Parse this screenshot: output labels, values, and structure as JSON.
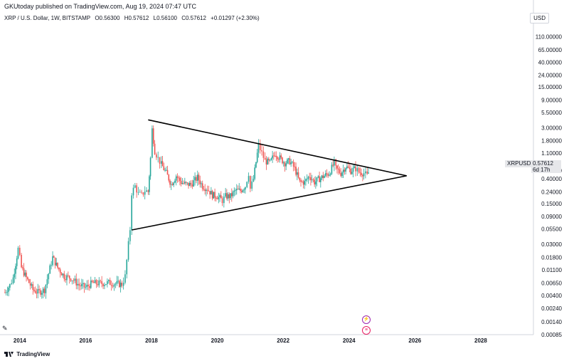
{
  "header": {
    "published": "GKUtoday published on TradingView.com, Aug 19, 2024 07:47 UTC",
    "symbol": "XRP / U.S. Dollar, 1W, BITSTAMP",
    "open": "O0.56300",
    "high": "H0.57612",
    "low": "L0.56100",
    "close": "C0.57612",
    "change": "+0.01297 (+2.30%)",
    "currency": "USD"
  },
  "price_badge": {
    "symbol": "XRPUSD",
    "price": "0.57612",
    "countdown": "6d 17h",
    "partial_label": "0.55000",
    "partial_label2": "0.40000"
  },
  "footer": {
    "brand": "TradingView"
  },
  "colors": {
    "up": "#26a69a",
    "down": "#ef5350",
    "line": "#000000",
    "accent": "#9c27b0",
    "event": "#e91e63"
  },
  "events": {
    "flash_icon": "lightning-icon",
    "flag_icon": "us-flag-icon"
  },
  "chart_data": {
    "type": "candlestick",
    "y_scale": "log",
    "ylim": [
      0.00085,
      200
    ],
    "xlim": [
      2013.4,
      2029.6
    ],
    "y_ticks": [
      "110.00000",
      "65.00000",
      "40.00000",
      "24.00000",
      "15.00000",
      "9.00000",
      "5.50000",
      "3.00000",
      "1.80000",
      "1.10000",
      "0.24000",
      "0.15000",
      "0.09000",
      "0.05500",
      "0.03000",
      "0.01800",
      "0.01100",
      "0.00650",
      "0.00400",
      "0.00240",
      "0.00140",
      "0.00085"
    ],
    "x_ticks": [
      "2014",
      "2016",
      "2018",
      "2020",
      "2022",
      "2024",
      "2026",
      "2028"
    ],
    "series": [
      {
        "points": [
          [
            2013.55,
            0.0045
          ],
          [
            2013.7,
            0.006
          ],
          [
            2013.8,
            0.008
          ],
          [
            2013.95,
            0.025
          ],
          [
            2014.05,
            0.012
          ],
          [
            2014.2,
            0.008
          ],
          [
            2014.4,
            0.005
          ],
          [
            2014.55,
            0.0045
          ],
          [
            2014.75,
            0.005
          ],
          [
            2015.0,
            0.018
          ],
          [
            2015.15,
            0.012
          ],
          [
            2015.35,
            0.0085
          ],
          [
            2015.55,
            0.008
          ],
          [
            2015.8,
            0.006
          ],
          [
            2016.0,
            0.0055
          ],
          [
            2016.2,
            0.0065
          ],
          [
            2016.45,
            0.0064
          ],
          [
            2016.7,
            0.0066
          ],
          [
            2016.95,
            0.0063
          ],
          [
            2017.1,
            0.0062
          ],
          [
            2017.2,
            0.0085
          ],
          [
            2017.3,
            0.03
          ],
          [
            2017.35,
            0.055
          ],
          [
            2017.4,
            0.23
          ],
          [
            2017.5,
            0.3
          ],
          [
            2017.6,
            0.22
          ],
          [
            2017.7,
            0.21
          ],
          [
            2017.8,
            0.25
          ],
          [
            2017.9,
            0.24
          ],
          [
            2017.97,
            0.9
          ],
          [
            2018.02,
            2.8
          ],
          [
            2018.1,
            1.2
          ],
          [
            2018.2,
            0.9
          ],
          [
            2018.3,
            0.7
          ],
          [
            2018.45,
            0.5
          ],
          [
            2018.6,
            0.32
          ],
          [
            2018.75,
            0.45
          ],
          [
            2018.9,
            0.35
          ],
          [
            2019.05,
            0.32
          ],
          [
            2019.2,
            0.32
          ],
          [
            2019.4,
            0.42
          ],
          [
            2019.55,
            0.3
          ],
          [
            2019.7,
            0.27
          ],
          [
            2019.85,
            0.21
          ],
          [
            2020.0,
            0.2
          ],
          [
            2020.15,
            0.17
          ],
          [
            2020.25,
            0.2
          ],
          [
            2020.4,
            0.2
          ],
          [
            2020.55,
            0.25
          ],
          [
            2020.7,
            0.25
          ],
          [
            2020.85,
            0.3
          ],
          [
            2020.95,
            0.5
          ],
          [
            2021.0,
            0.27
          ],
          [
            2021.1,
            0.4
          ],
          [
            2021.25,
            1.5
          ],
          [
            2021.35,
            1.1
          ],
          [
            2021.45,
            0.8
          ],
          [
            2021.6,
            0.75
          ],
          [
            2021.75,
            1.1
          ],
          [
            2021.9,
            0.9
          ],
          [
            2022.05,
            0.75
          ],
          [
            2022.2,
            0.8
          ],
          [
            2022.35,
            0.6
          ],
          [
            2022.5,
            0.35
          ],
          [
            2022.65,
            0.35
          ],
          [
            2022.8,
            0.45
          ],
          [
            2022.95,
            0.35
          ],
          [
            2023.1,
            0.4
          ],
          [
            2023.25,
            0.45
          ],
          [
            2023.4,
            0.5
          ],
          [
            2023.55,
            0.75
          ],
          [
            2023.6,
            0.6
          ],
          [
            2023.75,
            0.5
          ],
          [
            2023.9,
            0.65
          ],
          [
            2024.05,
            0.55
          ],
          [
            2024.2,
            0.6
          ],
          [
            2024.3,
            0.52
          ],
          [
            2024.45,
            0.5
          ],
          [
            2024.55,
            0.45
          ],
          [
            2024.63,
            0.58
          ]
        ]
      }
    ],
    "trendlines": [
      {
        "from": [
          2017.9,
          4.1
        ],
        "to": [
          2025.75,
          0.45
        ]
      },
      {
        "from": [
          2017.4,
          0.053
        ],
        "to": [
          2025.75,
          0.45
        ]
      }
    ]
  }
}
